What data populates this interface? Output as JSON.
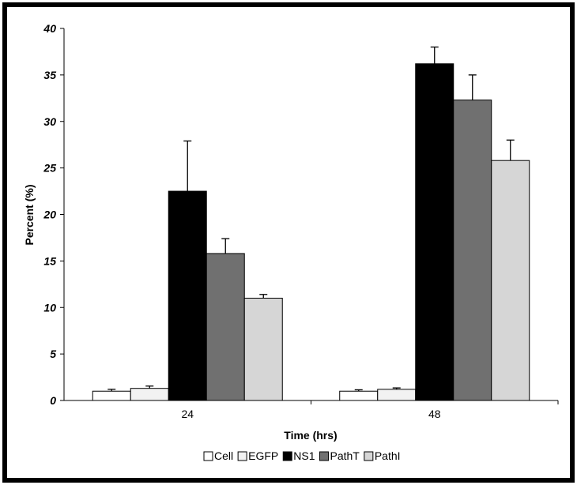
{
  "chart_data": {
    "type": "bar",
    "title": "",
    "xlabel": "Time (hrs)",
    "ylabel": "Percent (%)",
    "ylim": [
      0,
      40
    ],
    "yticks": [
      "0",
      "5",
      "10",
      "15",
      "20",
      "25",
      "30",
      "35",
      "40"
    ],
    "categories": [
      "24",
      "48"
    ],
    "series": [
      {
        "name": "Cell",
        "color": "#ffffff",
        "values": [
          1.0,
          1.0
        ],
        "errors": [
          0.2,
          0.15
        ]
      },
      {
        "name": "EGFP",
        "color": "#f2f2f2",
        "values": [
          1.3,
          1.2
        ],
        "errors": [
          0.25,
          0.15
        ]
      },
      {
        "name": "NS1",
        "color": "#000000",
        "values": [
          22.5,
          36.2
        ],
        "errors": [
          5.4,
          1.8
        ]
      },
      {
        "name": "PathT",
        "color": "#707070",
        "values": [
          15.8,
          32.3
        ],
        "errors": [
          1.6,
          2.7
        ]
      },
      {
        "name": "PathI",
        "color": "#d6d6d6",
        "values": [
          11.0,
          25.8
        ],
        "errors": [
          0.4,
          2.2
        ]
      }
    ],
    "legend_position": "bottom",
    "grid": false
  }
}
